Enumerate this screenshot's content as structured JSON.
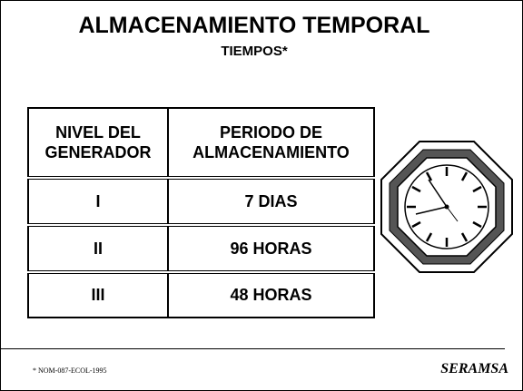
{
  "header": {
    "title": "ALMACENAMIENTO TEMPORAL",
    "subtitle": "TIEMPOS*"
  },
  "table": {
    "columns": [
      "NIVEL DEL GENERADOR",
      "PERIODO DE ALMACENAMIENTO"
    ],
    "rows": [
      [
        "I",
        "7 DIAS"
      ],
      [
        "II",
        "96 HORAS"
      ],
      [
        "III",
        "48 HORAS"
      ]
    ]
  },
  "footer": {
    "note": "* NOM-087-ECOL-1995",
    "brand": "SERAMSA"
  }
}
